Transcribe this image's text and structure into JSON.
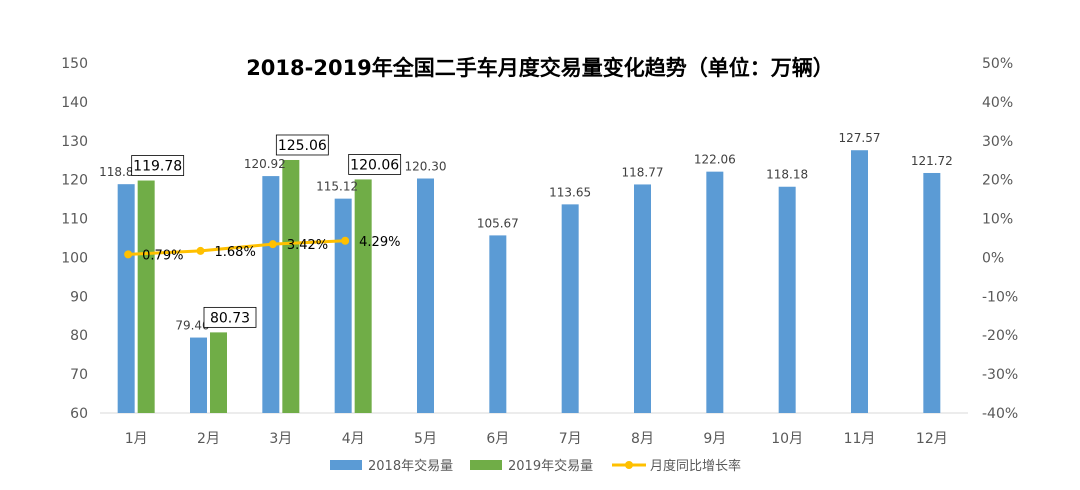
{
  "chart_data": {
    "type": "bar",
    "title": "2018-2019年全国二手车月度交易量变化趋势（单位：万辆）",
    "categories": [
      "1月",
      "2月",
      "3月",
      "4月",
      "5月",
      "6月",
      "7月",
      "8月",
      "9月",
      "10月",
      "11月",
      "12月"
    ],
    "series": [
      {
        "name": "2018年交易量",
        "type": "bar",
        "axis": "left",
        "color": "#5B9BD5",
        "values": [
          118.84,
          79.4,
          120.92,
          115.12,
          120.3,
          105.67,
          113.65,
          118.77,
          122.06,
          118.18,
          127.57,
          121.72
        ],
        "labels": [
          "118.84",
          "79.40",
          "120.92",
          "115.12",
          "120.30",
          "105.67",
          "113.65",
          "118.77",
          "122.06",
          "118.18",
          "127.57",
          "121.72"
        ]
      },
      {
        "name": "2019年交易量",
        "type": "bar",
        "axis": "left",
        "color": "#70AD47",
        "values": [
          119.78,
          80.73,
          125.06,
          120.06,
          null,
          null,
          null,
          null,
          null,
          null,
          null,
          null
        ],
        "labels": [
          "119.78",
          "80.73",
          "125.06",
          "120.06"
        ]
      },
      {
        "name": "月度同比增长率",
        "type": "line",
        "axis": "right",
        "color": "#FFC000",
        "values": [
          0.79,
          1.68,
          3.42,
          4.29,
          null,
          null,
          null,
          null,
          null,
          null,
          null,
          null
        ],
        "labels": [
          "0.79%",
          "1.68%",
          "3.42%",
          "4.29%"
        ]
      }
    ],
    "y_left": {
      "min": 60,
      "max": 150,
      "step": 10,
      "ticks": [
        "60",
        "70",
        "80",
        "90",
        "100",
        "110",
        "120",
        "130",
        "140",
        "150"
      ]
    },
    "y_right": {
      "min": -40,
      "max": 50,
      "step": 10,
      "ticks": [
        "-40%",
        "-30%",
        "-20%",
        "-10%",
        "0%",
        "10%",
        "20%",
        "30%",
        "40%",
        "50%"
      ]
    },
    "grid": false,
    "legend_position": "bottom"
  }
}
